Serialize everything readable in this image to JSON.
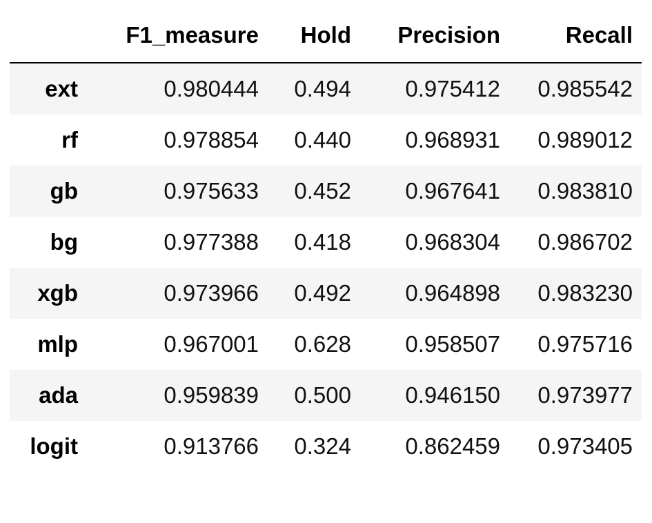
{
  "table": {
    "index_header": "",
    "columns": [
      "F1_measure",
      "Hold",
      "Precision",
      "Recall"
    ],
    "rows": [
      {
        "label": "ext",
        "values": [
          "0.980444",
          "0.494",
          "0.975412",
          "0.985542"
        ]
      },
      {
        "label": "rf",
        "values": [
          "0.978854",
          "0.440",
          "0.968931",
          "0.989012"
        ]
      },
      {
        "label": "gb",
        "values": [
          "0.975633",
          "0.452",
          "0.967641",
          "0.983810"
        ]
      },
      {
        "label": "bg",
        "values": [
          "0.977388",
          "0.418",
          "0.968304",
          "0.986702"
        ]
      },
      {
        "label": "xgb",
        "values": [
          "0.973966",
          "0.492",
          "0.964898",
          "0.983230"
        ]
      },
      {
        "label": "mlp",
        "values": [
          "0.967001",
          "0.628",
          "0.958507",
          "0.975716"
        ]
      },
      {
        "label": "ada",
        "values": [
          "0.959839",
          "0.500",
          "0.946150",
          "0.973977"
        ]
      },
      {
        "label": "logit",
        "values": [
          "0.913766",
          "0.324",
          "0.862459",
          "0.973405"
        ]
      }
    ]
  },
  "colors": {
    "stripe": "#f5f5f5",
    "background": "#ffffff",
    "header_rule": "#000000"
  }
}
